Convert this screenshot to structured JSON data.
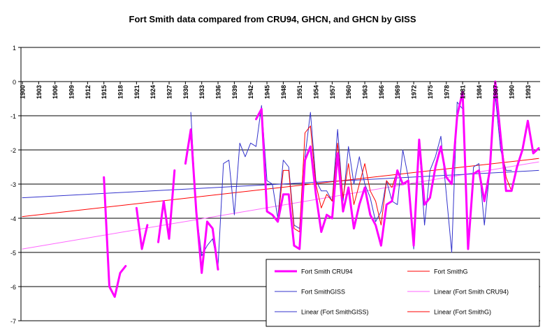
{
  "chart_data": {
    "type": "line",
    "title": "Fort Smith data compared from CRU94, GHCN, and GHCN by GISS",
    "xlabel": "",
    "ylabel": "",
    "ylim": [
      -7,
      1
    ],
    "y_ticks": [
      1,
      0,
      -1,
      -2,
      -3,
      -4,
      -5,
      -6,
      -7
    ],
    "x_range": [
      1900,
      1995
    ],
    "x_tick_labels": [
      "1900",
      "1903",
      "1906",
      "1909",
      "1912",
      "1915",
      "1918",
      "1921",
      "1924",
      "1927",
      "1930",
      "1933",
      "1936",
      "1939",
      "1942",
      "1945",
      "1948",
      "1951",
      "1954",
      "1957",
      "1960",
      "1963",
      "1966",
      "1969",
      "1972",
      "1975",
      "1978",
      "1981",
      "1984",
      "1987",
      "1990",
      "1993"
    ],
    "grid": "horizontal",
    "legend_position": "bottom-right",
    "series": [
      {
        "name": "Fort Smith CRU94",
        "color": "#ff00ff",
        "style": "thick",
        "points": [
          [
            1915,
            -2.8
          ],
          [
            1916,
            -6.0
          ],
          [
            1917,
            -6.3
          ],
          [
            1918,
            -5.6
          ],
          [
            1919,
            -5.4
          ],
          null,
          [
            1921,
            -3.7
          ],
          [
            1922,
            -4.9
          ],
          [
            1923,
            -4.2
          ],
          null,
          [
            1925,
            -4.7
          ],
          [
            1926,
            -3.5
          ],
          [
            1927,
            -4.6
          ],
          [
            1928,
            -2.6
          ],
          null,
          [
            1930,
            -2.4
          ],
          [
            1931,
            -1.4
          ],
          [
            1932,
            -3.8
          ],
          [
            1933,
            -5.6
          ],
          [
            1934,
            -4.1
          ],
          [
            1935,
            -4.3
          ],
          [
            1936,
            -5.5
          ],
          null,
          [
            1943,
            -1.1
          ],
          [
            1944,
            -0.8
          ],
          [
            1945,
            -3.8
          ],
          [
            1946,
            -3.9
          ],
          [
            1947,
            -4.1
          ],
          [
            1948,
            -3.3
          ],
          [
            1949,
            -3.3
          ],
          [
            1950,
            -4.8
          ],
          [
            1951,
            -4.9
          ],
          [
            1952,
            -2.3
          ],
          [
            1953,
            -1.9
          ],
          [
            1954,
            -3.3
          ],
          [
            1955,
            -4.4
          ],
          [
            1956,
            -3.9
          ],
          [
            1957,
            -4.0
          ],
          [
            1958,
            -2.1
          ],
          [
            1959,
            -3.8
          ],
          [
            1960,
            -3.1
          ],
          [
            1961,
            -4.3
          ],
          [
            1962,
            -3.6
          ],
          [
            1963,
            -3.1
          ],
          [
            1964,
            -3.9
          ],
          [
            1965,
            -4.2
          ],
          [
            1966,
            -4.8
          ],
          [
            1967,
            -3.6
          ],
          [
            1968,
            -3.5
          ],
          [
            1969,
            -2.6
          ],
          [
            1970,
            -3.0
          ],
          [
            1971,
            -2.9
          ],
          [
            1972,
            -4.8
          ],
          [
            1973,
            -1.7
          ],
          [
            1974,
            -3.6
          ],
          [
            1975,
            -3.4
          ],
          [
            1976,
            -2.5
          ],
          [
            1977,
            -1.9
          ],
          [
            1978,
            -2.8
          ],
          [
            1979,
            -3.0
          ],
          [
            1980,
            -1.0
          ],
          [
            1981,
            -0.3
          ],
          [
            1982,
            -4.9
          ],
          [
            1983,
            -2.7
          ],
          [
            1984,
            -2.6
          ],
          [
            1985,
            -3.5
          ],
          [
            1986,
            -2.6
          ],
          [
            1987,
            0.0
          ],
          [
            1988,
            -1.6
          ],
          [
            1989,
            -3.2
          ],
          [
            1990,
            -3.2
          ],
          [
            1991,
            -2.5
          ],
          [
            1992,
            -2.0
          ],
          [
            1993,
            -1.15
          ],
          [
            1994,
            -2.1
          ],
          [
            1995,
            -1.95
          ]
        ]
      },
      {
        "name": "Fort SmithG",
        "color": "#ff0000",
        "style": "thin",
        "points": [
          [
            1945,
            -3.8
          ],
          [
            1946,
            -3.9
          ],
          [
            1947,
            -4.1
          ],
          [
            1948,
            -2.6
          ],
          [
            1949,
            -2.6
          ],
          [
            1950,
            -4.3
          ],
          [
            1951,
            -4.4
          ],
          [
            1952,
            -1.5
          ],
          [
            1953,
            -1.3
          ],
          [
            1954,
            -3.0
          ],
          [
            1955,
            -3.7
          ],
          [
            1956,
            -3.3
          ],
          [
            1957,
            -3.5
          ],
          [
            1958,
            -1.8
          ],
          [
            1959,
            -3.4
          ],
          [
            1960,
            -2.4
          ],
          [
            1961,
            -3.6
          ],
          [
            1962,
            -3.0
          ],
          [
            1963,
            -2.4
          ],
          [
            1964,
            -3.2
          ],
          [
            1965,
            -3.5
          ],
          [
            1966,
            -4.2
          ],
          [
            1967,
            -2.9
          ],
          [
            1968,
            -3.1
          ],
          [
            1969,
            -2.6
          ],
          [
            1970,
            -3.0
          ],
          [
            1971,
            -2.9
          ],
          [
            1972,
            -4.8
          ],
          [
            1973,
            -1.7
          ],
          [
            1974,
            -3.6
          ],
          [
            1975,
            -3.4
          ],
          [
            1976,
            -2.5
          ],
          [
            1977,
            -1.9
          ],
          [
            1978,
            -2.8
          ],
          [
            1979,
            -3.0
          ],
          [
            1980,
            -1.0
          ],
          [
            1981,
            -0.3
          ],
          [
            1982,
            -4.9
          ],
          [
            1983,
            -2.7
          ],
          [
            1984,
            -2.6
          ],
          [
            1985,
            -3.5
          ],
          [
            1986,
            -2.6
          ],
          [
            1987,
            0.0
          ],
          [
            1988,
            -1.6
          ],
          [
            1989,
            -2.8
          ],
          [
            1990,
            -3.2
          ]
        ]
      },
      {
        "name": "Fort SmithGISS",
        "color": "#3333cc",
        "style": "thin",
        "points": [
          [
            1931,
            -0.9
          ],
          [
            1932,
            -3.8
          ],
          [
            1933,
            -5.1
          ],
          [
            1934,
            -4.8
          ],
          [
            1935,
            -4.6
          ],
          [
            1936,
            -5.4
          ],
          [
            1937,
            -2.4
          ],
          [
            1938,
            -2.3
          ],
          [
            1939,
            -3.9
          ],
          [
            1940,
            -1.8
          ],
          [
            1941,
            -2.2
          ],
          [
            1942,
            -1.8
          ],
          [
            1943,
            -1.9
          ],
          [
            1944,
            -0.7
          ],
          [
            1945,
            -2.9
          ],
          [
            1946,
            -3.0
          ],
          [
            1947,
            -4.0
          ],
          [
            1948,
            -2.3
          ],
          [
            1949,
            -2.5
          ],
          [
            1950,
            -4.2
          ],
          [
            1951,
            -4.3
          ],
          [
            1952,
            -2.2
          ],
          [
            1953,
            -0.9
          ],
          [
            1954,
            -2.9
          ],
          [
            1955,
            -3.2
          ],
          [
            1956,
            -3.2
          ],
          [
            1957,
            -3.5
          ],
          [
            1958,
            -1.4
          ],
          [
            1959,
            -3.5
          ],
          [
            1960,
            -1.9
          ],
          [
            1961,
            -3.0
          ],
          [
            1962,
            -2.2
          ],
          [
            1963,
            -3.0
          ],
          [
            1964,
            -3.4
          ],
          [
            1965,
            -4.1
          ],
          [
            1966,
            -3.8
          ],
          [
            1967,
            -2.9
          ],
          [
            1968,
            -3.5
          ],
          [
            1969,
            -3.6
          ],
          [
            1970,
            -2.0
          ],
          [
            1971,
            -2.8
          ],
          [
            1972,
            -4.9
          ],
          [
            1973,
            -1.8
          ],
          [
            1974,
            -4.2
          ],
          [
            1975,
            -2.6
          ],
          [
            1976,
            -2.2
          ],
          [
            1977,
            -1.6
          ],
          [
            1978,
            -3.3
          ],
          [
            1979,
            -5.0
          ],
          [
            1980,
            -0.6
          ],
          [
            1981,
            -0.8
          ],
          [
            1982,
            -4.9
          ],
          [
            1983,
            -2.5
          ],
          [
            1984,
            -2.4
          ],
          [
            1985,
            -4.2
          ],
          [
            1986,
            -2.6
          ],
          [
            1987,
            -0.4
          ],
          [
            1988,
            -2.0
          ],
          [
            1989,
            -2.6
          ],
          [
            1990,
            -2.6
          ]
        ]
      },
      {
        "name": "Linear (Fort Smith CRU94)",
        "color": "#ff66ff",
        "style": "trend",
        "points": [
          [
            1900,
            -4.9
          ],
          [
            1995,
            -2.35
          ]
        ]
      },
      {
        "name": "Linear (Fort SmithGISS)",
        "color": "#3333cc",
        "style": "trend",
        "points": [
          [
            1900,
            -3.4
          ],
          [
            1995,
            -2.6
          ]
        ]
      },
      {
        "name": "Linear (Fort SmithG)",
        "color": "#ff0000",
        "style": "trend",
        "points": [
          [
            1900,
            -3.95
          ],
          [
            1995,
            -2.25
          ]
        ]
      }
    ]
  }
}
